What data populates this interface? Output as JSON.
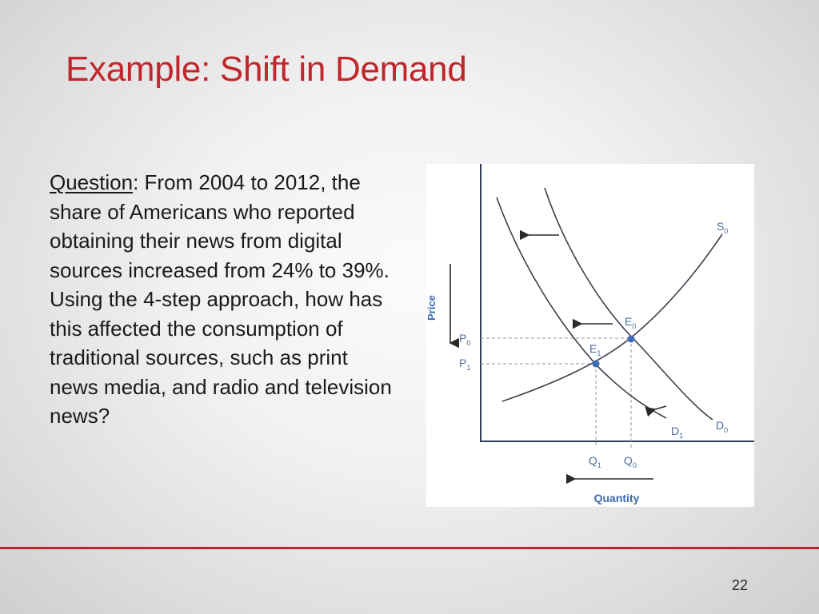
{
  "slide": {
    "title": "Example:  Shift in Demand",
    "question_label": "Question",
    "question_body": ": From 2004 to 2012, the share of Americans who reported obtaining their news from digital sources increased from 24% to 39%. Using the 4-step approach, how has this affected the consumption of traditional sources, such as print news media, and radio and television news?",
    "page_number": "22"
  },
  "diagram": {
    "axis_y_label": "Price",
    "axis_x_label": "Quantity",
    "supply_curve": {
      "main": "S",
      "sub": "0"
    },
    "demand_original": {
      "main": "D",
      "sub": "0"
    },
    "demand_new": {
      "main": "D",
      "sub": "1"
    },
    "equilibrium_original": {
      "main": "E",
      "sub": "0"
    },
    "equilibrium_new": {
      "main": "E",
      "sub": "1"
    },
    "price_original": {
      "main": "P",
      "sub": "0"
    },
    "price_new": {
      "main": "P",
      "sub": "1"
    },
    "quantity_original": {
      "main": "Q",
      "sub": "0"
    },
    "quantity_new": {
      "main": "Q",
      "sub": "1"
    },
    "colors": {
      "curve": "#3a3f4a",
      "axis": "#2f3a55",
      "point": "#3f6db5",
      "guide": "#8f96a8",
      "label": "#4d6f9c",
      "axis_label": "#3c6bb0"
    }
  },
  "theme": {
    "title_color": "#c0262b",
    "rule_color": "#c0262b"
  }
}
